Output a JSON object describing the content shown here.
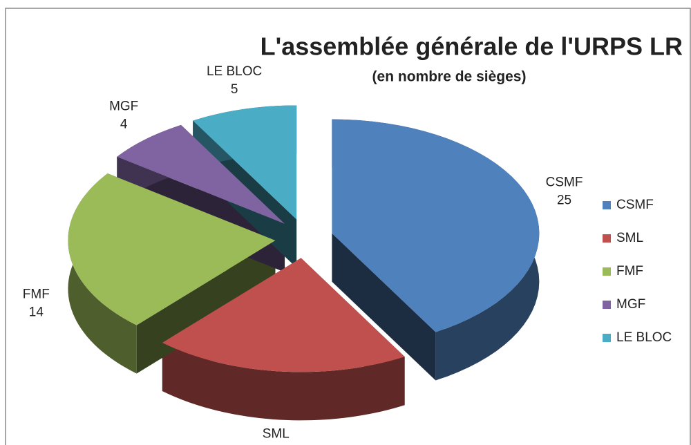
{
  "chart_data": {
    "type": "pie",
    "title": "L'assemblée générale de l'URPS LR",
    "subtitle": "(en nombre de sièges)",
    "categories": [
      "CSMF",
      "SML",
      "FMF",
      "MGF",
      "LE BLOC"
    ],
    "values": [
      25,
      12,
      14,
      4,
      5
    ],
    "colors": [
      "#4f81bd",
      "#c0504d",
      "#9bbb59",
      "#8064a2",
      "#4bacc6"
    ],
    "legend": "right"
  }
}
